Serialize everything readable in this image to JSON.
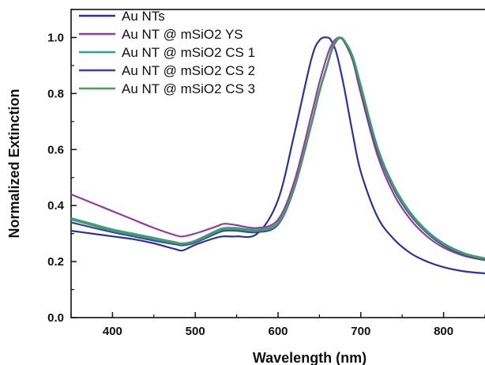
{
  "chart_data": {
    "type": "line",
    "xlabel": "Wavelength (nm)",
    "ylabel": "Normalized Extinction",
    "xlim": [
      350,
      850
    ],
    "ylim": [
      0.0,
      1.1
    ],
    "x_ticks": [
      400,
      500,
      600,
      700,
      800
    ],
    "x_tick_labels": [
      "400",
      "500",
      "600",
      "700",
      "800"
    ],
    "y_ticks": [
      0.0,
      0.2,
      0.4,
      0.6,
      0.8,
      1.0
    ],
    "y_tick_labels": [
      "0.0",
      "0.2",
      "0.4",
      "0.6",
      "0.8",
      "1.0"
    ],
    "legend_position": "top-left",
    "grid": false,
    "x": [
      350,
      375,
      400,
      425,
      450,
      475,
      485,
      500,
      525,
      535,
      550,
      575,
      600,
      620,
      640,
      650,
      660,
      665,
      670,
      675,
      680,
      690,
      700,
      720,
      740,
      760,
      780,
      800,
      825,
      850
    ],
    "series": [
      {
        "name": "Au NTs",
        "color": "#2e3196",
        "values": [
          0.31,
          0.3,
          0.29,
          0.28,
          0.265,
          0.245,
          0.24,
          0.26,
          0.285,
          0.29,
          0.29,
          0.3,
          0.42,
          0.66,
          0.92,
          0.99,
          1.0,
          0.985,
          0.95,
          0.89,
          0.82,
          0.66,
          0.52,
          0.36,
          0.28,
          0.23,
          0.2,
          0.18,
          0.165,
          0.158
        ]
      },
      {
        "name": "Au NT @ mSiO2 YS",
        "color": "#943b9f",
        "values": [
          0.44,
          0.41,
          0.38,
          0.35,
          0.32,
          0.295,
          0.29,
          0.3,
          0.325,
          0.335,
          0.33,
          0.32,
          0.35,
          0.49,
          0.72,
          0.84,
          0.94,
          0.975,
          0.995,
          1.0,
          0.985,
          0.92,
          0.8,
          0.58,
          0.44,
          0.35,
          0.29,
          0.25,
          0.22,
          0.205
        ]
      },
      {
        "name": "Au NT @ mSiO2 CS 1",
        "color": "#2aa39a",
        "values": [
          0.355,
          0.335,
          0.315,
          0.3,
          0.285,
          0.27,
          0.265,
          0.275,
          0.31,
          0.32,
          0.32,
          0.315,
          0.34,
          0.47,
          0.69,
          0.81,
          0.91,
          0.96,
          0.99,
          1.0,
          0.99,
          0.935,
          0.83,
          0.61,
          0.47,
          0.375,
          0.31,
          0.265,
          0.23,
          0.212
        ]
      },
      {
        "name": "Au NT @ mSiO2 CS 2",
        "color": "#3b3fb0",
        "values": [
          0.34,
          0.322,
          0.305,
          0.29,
          0.275,
          0.262,
          0.258,
          0.268,
          0.3,
          0.31,
          0.31,
          0.305,
          0.332,
          0.465,
          0.685,
          0.805,
          0.905,
          0.955,
          0.985,
          0.998,
          0.985,
          0.925,
          0.815,
          0.598,
          0.458,
          0.365,
          0.302,
          0.258,
          0.224,
          0.206
        ]
      },
      {
        "name": "Au NT @ mSiO2 CS 3",
        "color": "#4e9a55",
        "values": [
          0.35,
          0.33,
          0.31,
          0.295,
          0.28,
          0.266,
          0.262,
          0.272,
          0.305,
          0.315,
          0.315,
          0.31,
          0.336,
          0.468,
          0.688,
          0.808,
          0.908,
          0.958,
          0.988,
          1.0,
          0.988,
          0.93,
          0.822,
          0.604,
          0.464,
          0.37,
          0.306,
          0.262,
          0.227,
          0.209
        ]
      }
    ]
  }
}
